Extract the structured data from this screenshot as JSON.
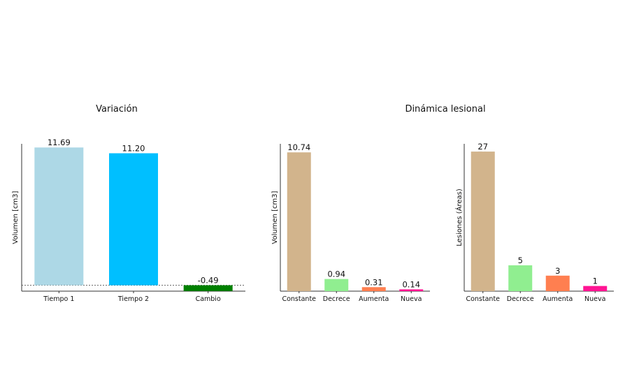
{
  "titles": {
    "left": "Variación",
    "right": "Dinámica lesional"
  },
  "chart_data": [
    {
      "type": "bar",
      "title": "Variación",
      "ylabel": "Volumen [cm3]",
      "categories": [
        "Tiempo 1",
        "Tiempo 2",
        "Cambio"
      ],
      "values": [
        11.69,
        11.2,
        -0.49
      ],
      "value_labels": [
        "11.69",
        "11.20",
        "-0.49"
      ],
      "colors": [
        "#add8e6",
        "#00bfff",
        "#008000"
      ],
      "ylim": [
        -0.5,
        12.0
      ],
      "baseline": "dashed at 0",
      "grid": false
    },
    {
      "type": "bar",
      "title": "Dinámica lesional",
      "ylabel": "Volumen [cm3]",
      "categories": [
        "Constante",
        "Decrece",
        "Aumenta",
        "Nueva"
      ],
      "values": [
        10.74,
        0.94,
        0.31,
        0.14
      ],
      "value_labels": [
        "10.74",
        "0.94",
        "0.31",
        "0.14"
      ],
      "colors": [
        "#d2b48c",
        "#90ee90",
        "#ff7f50",
        "#ff1493"
      ],
      "ylim": [
        0,
        11.4
      ],
      "grid": false
    },
    {
      "type": "bar",
      "ylabel": "Lesiones (Áreas)",
      "categories": [
        "Constante",
        "Decrece",
        "Aumenta",
        "Nueva"
      ],
      "values": [
        27,
        5,
        3,
        1
      ],
      "value_labels": [
        "27",
        "5",
        "3",
        "1"
      ],
      "colors": [
        "#d2b48c",
        "#90ee90",
        "#ff7f50",
        "#ff1493"
      ],
      "ylim": [
        0,
        28.5
      ],
      "grid": false
    }
  ]
}
